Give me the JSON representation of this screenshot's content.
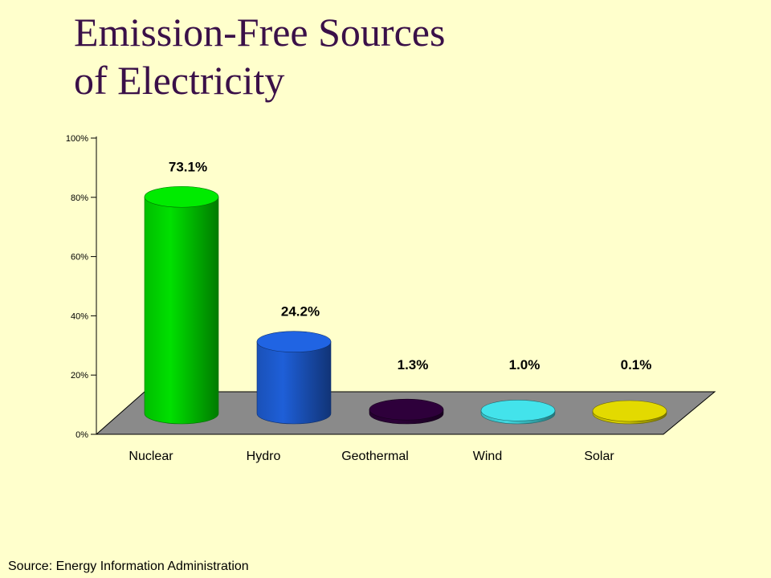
{
  "title_lines": [
    "Emission-Free Sources",
    "of Electricity"
  ],
  "source": "Source: Energy Information Administration",
  "chart_data": {
    "type": "bar",
    "categories": [
      "Nuclear",
      "Hydro",
      "Geothermal",
      "Wind",
      "Solar"
    ],
    "values": [
      73.1,
      24.2,
      1.3,
      1.0,
      0.1
    ],
    "data_labels": [
      "73.1%",
      "24.2%",
      "1.3%",
      "1.0%",
      "0.1%"
    ],
    "ylim": [
      0,
      100
    ],
    "yticks": [
      0,
      20,
      40,
      60,
      80,
      100
    ],
    "ytick_labels": [
      "0%",
      "20%",
      "40%",
      "60%",
      "80%",
      "100%"
    ],
    "colors": {
      "bars": [
        "#00E000",
        "#1E5FD8",
        "#2C0038",
        "#40D8E0",
        "#D8D000"
      ],
      "floor": "#8A8A8A",
      "background": "#FFFFCC"
    }
  }
}
